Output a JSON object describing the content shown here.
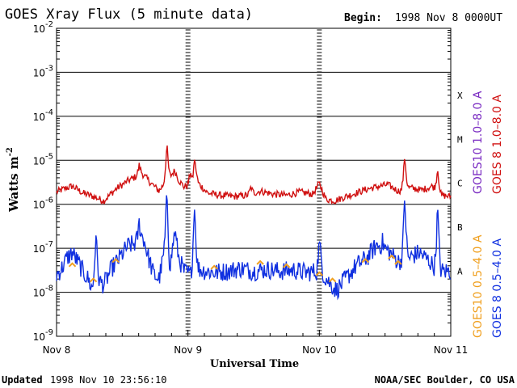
{
  "header": {
    "title": "GOES Xray Flux (5 minute data)",
    "begin_label": "Begin:",
    "begin_value": "1998 Nov 8 0000UT"
  },
  "footer": {
    "updated_label": "Updated",
    "updated_value": "1998 Nov 10 23:56:10",
    "credit": "NOAA/SEC Boulder, CO USA"
  },
  "colors": {
    "goes10_long": "#7a2bc2",
    "goes8_long": "#d01010",
    "goes10_short": "#f0a020",
    "goes8_short": "#1030e0"
  },
  "chart_data": {
    "type": "line",
    "xlabel": "Universal Time",
    "ylabel": "Watts m",
    "ylabel_sup": "-2",
    "y_scale": "log",
    "ylim": [
      1e-09,
      0.01
    ],
    "y_ticks": [
      {
        "mant": "10",
        "exp": "-2",
        "value": 0.01
      },
      {
        "mant": "10",
        "exp": "-3",
        "value": 0.001
      },
      {
        "mant": "10",
        "exp": "-4",
        "value": 0.0001
      },
      {
        "mant": "10",
        "exp": "-5",
        "value": 1e-05
      },
      {
        "mant": "10",
        "exp": "-6",
        "value": 1e-06
      },
      {
        "mant": "10",
        "exp": "-7",
        "value": 1e-07
      },
      {
        "mant": "10",
        "exp": "-8",
        "value": 1e-08
      },
      {
        "mant": "10",
        "exp": "-9",
        "value": 1e-09
      }
    ],
    "xlim_days": [
      0,
      3
    ],
    "x_ticks": [
      {
        "label": "Nov 8",
        "day": 0
      },
      {
        "label": "Nov 9",
        "day": 1
      },
      {
        "label": "Nov 10",
        "day": 2
      },
      {
        "label": "Nov 11",
        "day": 3
      }
    ],
    "flare_classes": [
      {
        "label": "X",
        "value": 0.0003
      },
      {
        "label": "M",
        "value": 3e-05
      },
      {
        "label": "C",
        "value": 3e-06
      },
      {
        "label": "B",
        "value": 3e-07
      },
      {
        "label": "A",
        "value": 3e-08
      }
    ],
    "grid": "horizontal at each decade",
    "legend": [
      {
        "goes": "GOES10",
        "band": "1.0–8.0 A",
        "color": "#7a2bc2"
      },
      {
        "goes": "GOES 8",
        "band": "1.0–8.0 A",
        "color": "#d01010"
      },
      {
        "goes": "GOES10",
        "band": "0.5–4.0 A",
        "color": "#f0a020"
      },
      {
        "goes": "GOES 8",
        "band": "0.5–4.0 A",
        "color": "#1030e0"
      }
    ],
    "legend_placement": "right, rotated vertical",
    "series": [
      {
        "key": "goes8_long",
        "name": "GOES 8 1.0–8.0 A",
        "color": "#d01010",
        "points": [
          [
            0,
            1.9e-06
          ],
          [
            0.05,
            2.2e-06
          ],
          [
            0.12,
            2.6e-06
          ],
          [
            0.2,
            1.8e-06
          ],
          [
            0.28,
            1.5e-06
          ],
          [
            0.36,
            1.2e-06
          ],
          [
            0.45,
            2.2e-06
          ],
          [
            0.55,
            3.5e-06
          ],
          [
            0.65,
            5e-06
          ],
          [
            0.72,
            3e-06
          ],
          [
            0.78,
            2e-06
          ],
          [
            0.82,
            3e-06
          ],
          [
            0.9,
            5.8e-06
          ],
          [
            0.93,
            3.5e-06
          ],
          [
            0.97,
            2.5e-06
          ],
          [
            1.01,
            2.8e-06
          ],
          [
            1.03,
            2e-06
          ],
          [
            1.06,
            4.5e-06
          ],
          [
            1.08,
            3e-06
          ],
          [
            1.15,
            1.8e-06
          ],
          [
            1.25,
            1.6e-06
          ],
          [
            1.35,
            1.5e-06
          ],
          [
            1.45,
            1.6e-06
          ],
          [
            1.55,
            2e-06
          ],
          [
            1.65,
            1.7e-06
          ],
          [
            1.75,
            1.6e-06
          ],
          [
            1.85,
            1.9e-06
          ],
          [
            1.95,
            1.7e-06
          ],
          [
            2.0,
            3e-06
          ],
          [
            2.05,
            1.3e-06
          ],
          [
            2.12,
            1.2e-06
          ],
          [
            2.2,
            1.5e-06
          ],
          [
            2.28,
            1.8e-06
          ],
          [
            2.36,
            2.2e-06
          ],
          [
            2.44,
            2.5e-06
          ],
          [
            2.52,
            2.8e-06
          ],
          [
            2.6,
            2e-06
          ],
          [
            2.68,
            2.4e-06
          ],
          [
            2.78,
            2.1e-06
          ],
          [
            2.86,
            2.6e-06
          ],
          [
            2.93,
            1.6e-06
          ],
          [
            3.0,
            1.5e-06
          ]
        ],
        "peaks": [
          [
            0.63,
            8e-06
          ],
          [
            0.84,
            2.4e-05
          ],
          [
            1.05,
            1.1e-05
          ],
          [
            1.02,
            6e-06
          ],
          [
            2.65,
            1.4e-05
          ],
          [
            2.9,
            7e-06
          ],
          [
            1.48,
            2.5e-06
          ]
        ]
      },
      {
        "key": "goes8_short",
        "name": "GOES 8 0.5–4.0 A",
        "color": "#1030e0",
        "points": [
          [
            0,
            2.5e-08
          ],
          [
            0.04,
            3.5e-08
          ],
          [
            0.08,
            6e-08
          ],
          [
            0.12,
            8e-08
          ],
          [
            0.16,
            5e-08
          ],
          [
            0.2,
            3e-08
          ],
          [
            0.24,
            2e-08
          ],
          [
            0.27,
            1.2e-08
          ],
          [
            0.32,
            1.8e-08
          ],
          [
            0.36,
            1.5e-08
          ],
          [
            0.42,
            3.5e-08
          ],
          [
            0.48,
            6e-08
          ],
          [
            0.54,
            1.1e-07
          ],
          [
            0.6,
            1.3e-07
          ],
          [
            0.66,
            1.8e-07
          ],
          [
            0.7,
            6e-08
          ],
          [
            0.74,
            2.5e-08
          ],
          [
            0.78,
            2e-08
          ],
          [
            0.82,
            8e-08
          ],
          [
            0.86,
            3e-08
          ],
          [
            0.9,
            2.5e-07
          ],
          [
            0.93,
            6e-08
          ],
          [
            0.97,
            3e-08
          ],
          [
            1.02,
            2.5e-08
          ],
          [
            1.05,
            4e-08
          ],
          [
            1.1,
            3.2e-08
          ],
          [
            1.2,
            2.8e-08
          ],
          [
            1.3,
            3e-08
          ],
          [
            1.4,
            3.5e-08
          ],
          [
            1.5,
            3e-08
          ],
          [
            1.6,
            3.3e-08
          ],
          [
            1.7,
            3e-08
          ],
          [
            1.8,
            3.2e-08
          ],
          [
            1.9,
            2.8e-08
          ],
          [
            1.98,
            3e-08
          ],
          [
            2.0,
            1.3e-07
          ],
          [
            2.03,
            2.5e-08
          ],
          [
            2.08,
            1.6e-08
          ],
          [
            2.13,
            1.1e-08
          ],
          [
            2.2,
            2e-08
          ],
          [
            2.28,
            4e-08
          ],
          [
            2.36,
            6e-08
          ],
          [
            2.44,
            1.2e-07
          ],
          [
            2.52,
            9e-08
          ],
          [
            2.6,
            5e-08
          ],
          [
            2.68,
            6e-08
          ],
          [
            2.76,
            8e-08
          ],
          [
            2.84,
            5e-08
          ],
          [
            2.9,
            3e-08
          ],
          [
            3.0,
            3e-08
          ]
        ],
        "peaks": [
          [
            0.3,
            2.5e-07
          ],
          [
            0.63,
            4e-07
          ],
          [
            0.84,
            2.5e-06
          ],
          [
            1.05,
            1.2e-06
          ],
          [
            2.65,
            1.9e-06
          ],
          [
            2.9,
            1e-06
          ],
          [
            2.48,
            1.4e-07
          ]
        ]
      },
      {
        "key": "goes10_short",
        "name": "GOES10 0.5–4.0 A",
        "color": "#f0a020",
        "points": [
          [
            0.12,
            4e-08
          ],
          [
            0.28,
            1.8e-08
          ],
          [
            0.45,
            5e-08
          ],
          [
            1.2,
            3.5e-08
          ],
          [
            1.55,
            4.5e-08
          ],
          [
            1.75,
            3.8e-08
          ],
          [
            2.0,
            2.5e-08
          ],
          [
            2.1,
            1.8e-08
          ],
          [
            2.35,
            5e-08
          ],
          [
            2.55,
            6e-08
          ],
          [
            2.6,
            4.5e-08
          ]
        ],
        "peaks": []
      }
    ]
  }
}
